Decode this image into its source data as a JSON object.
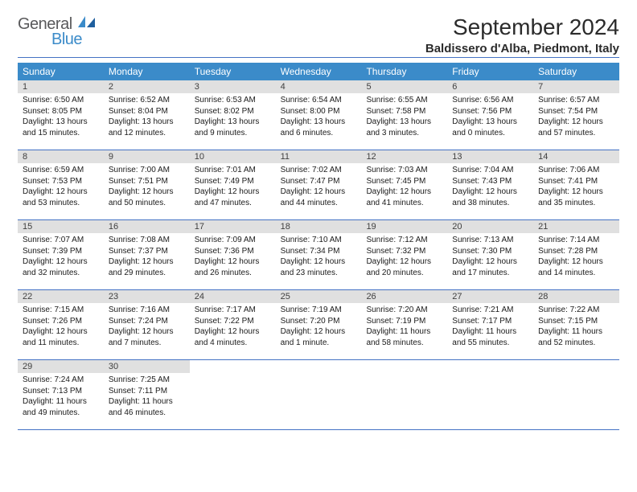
{
  "logo": {
    "word1": "General",
    "word2": "Blue"
  },
  "title": "September 2024",
  "location": "Baldissero d'Alba, Piedmont, Italy",
  "colors": {
    "header_bg": "#3b8bc9",
    "rule": "#4472c4",
    "daynum_bg": "#e0e0e0",
    "text": "#1a1a1a"
  },
  "day_headers": [
    "Sunday",
    "Monday",
    "Tuesday",
    "Wednesday",
    "Thursday",
    "Friday",
    "Saturday"
  ],
  "weeks": [
    [
      {
        "n": "1",
        "sr": "6:50 AM",
        "ss": "8:05 PM",
        "dl": "13 hours and 15 minutes."
      },
      {
        "n": "2",
        "sr": "6:52 AM",
        "ss": "8:04 PM",
        "dl": "13 hours and 12 minutes."
      },
      {
        "n": "3",
        "sr": "6:53 AM",
        "ss": "8:02 PM",
        "dl": "13 hours and 9 minutes."
      },
      {
        "n": "4",
        "sr": "6:54 AM",
        "ss": "8:00 PM",
        "dl": "13 hours and 6 minutes."
      },
      {
        "n": "5",
        "sr": "6:55 AM",
        "ss": "7:58 PM",
        "dl": "13 hours and 3 minutes."
      },
      {
        "n": "6",
        "sr": "6:56 AM",
        "ss": "7:56 PM",
        "dl": "13 hours and 0 minutes."
      },
      {
        "n": "7",
        "sr": "6:57 AM",
        "ss": "7:54 PM",
        "dl": "12 hours and 57 minutes."
      }
    ],
    [
      {
        "n": "8",
        "sr": "6:59 AM",
        "ss": "7:53 PM",
        "dl": "12 hours and 53 minutes."
      },
      {
        "n": "9",
        "sr": "7:00 AM",
        "ss": "7:51 PM",
        "dl": "12 hours and 50 minutes."
      },
      {
        "n": "10",
        "sr": "7:01 AM",
        "ss": "7:49 PM",
        "dl": "12 hours and 47 minutes."
      },
      {
        "n": "11",
        "sr": "7:02 AM",
        "ss": "7:47 PM",
        "dl": "12 hours and 44 minutes."
      },
      {
        "n": "12",
        "sr": "7:03 AM",
        "ss": "7:45 PM",
        "dl": "12 hours and 41 minutes."
      },
      {
        "n": "13",
        "sr": "7:04 AM",
        "ss": "7:43 PM",
        "dl": "12 hours and 38 minutes."
      },
      {
        "n": "14",
        "sr": "7:06 AM",
        "ss": "7:41 PM",
        "dl": "12 hours and 35 minutes."
      }
    ],
    [
      {
        "n": "15",
        "sr": "7:07 AM",
        "ss": "7:39 PM",
        "dl": "12 hours and 32 minutes."
      },
      {
        "n": "16",
        "sr": "7:08 AM",
        "ss": "7:37 PM",
        "dl": "12 hours and 29 minutes."
      },
      {
        "n": "17",
        "sr": "7:09 AM",
        "ss": "7:36 PM",
        "dl": "12 hours and 26 minutes."
      },
      {
        "n": "18",
        "sr": "7:10 AM",
        "ss": "7:34 PM",
        "dl": "12 hours and 23 minutes."
      },
      {
        "n": "19",
        "sr": "7:12 AM",
        "ss": "7:32 PM",
        "dl": "12 hours and 20 minutes."
      },
      {
        "n": "20",
        "sr": "7:13 AM",
        "ss": "7:30 PM",
        "dl": "12 hours and 17 minutes."
      },
      {
        "n": "21",
        "sr": "7:14 AM",
        "ss": "7:28 PM",
        "dl": "12 hours and 14 minutes."
      }
    ],
    [
      {
        "n": "22",
        "sr": "7:15 AM",
        "ss": "7:26 PM",
        "dl": "12 hours and 11 minutes."
      },
      {
        "n": "23",
        "sr": "7:16 AM",
        "ss": "7:24 PM",
        "dl": "12 hours and 7 minutes."
      },
      {
        "n": "24",
        "sr": "7:17 AM",
        "ss": "7:22 PM",
        "dl": "12 hours and 4 minutes."
      },
      {
        "n": "25",
        "sr": "7:19 AM",
        "ss": "7:20 PM",
        "dl": "12 hours and 1 minute."
      },
      {
        "n": "26",
        "sr": "7:20 AM",
        "ss": "7:19 PM",
        "dl": "11 hours and 58 minutes."
      },
      {
        "n": "27",
        "sr": "7:21 AM",
        "ss": "7:17 PM",
        "dl": "11 hours and 55 minutes."
      },
      {
        "n": "28",
        "sr": "7:22 AM",
        "ss": "7:15 PM",
        "dl": "11 hours and 52 minutes."
      }
    ],
    [
      {
        "n": "29",
        "sr": "7:24 AM",
        "ss": "7:13 PM",
        "dl": "11 hours and 49 minutes."
      },
      {
        "n": "30",
        "sr": "7:25 AM",
        "ss": "7:11 PM",
        "dl": "11 hours and 46 minutes."
      },
      null,
      null,
      null,
      null,
      null
    ]
  ],
  "labels": {
    "sunrise": "Sunrise: ",
    "sunset": "Sunset: ",
    "daylight": "Daylight: "
  }
}
